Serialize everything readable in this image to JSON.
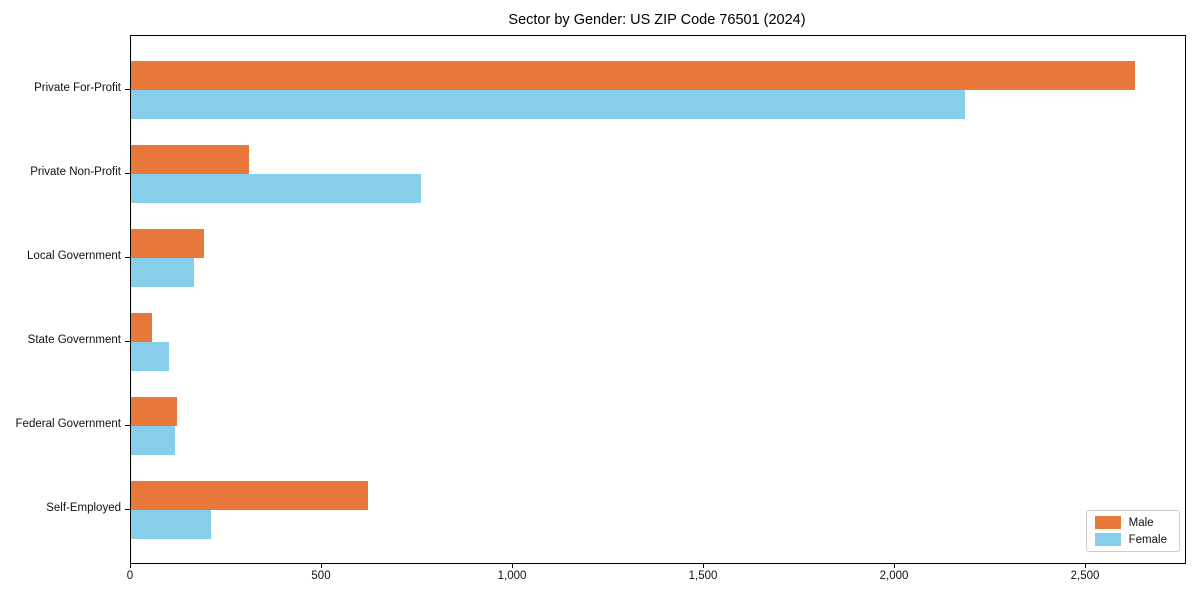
{
  "chart_data": {
    "type": "bar",
    "orientation": "horizontal",
    "title": "Sector by Gender: US ZIP Code 76501 (2024)",
    "categories": [
      "Private For-Profit",
      "Private Non-Profit",
      "Local Government",
      "State Government",
      "Federal Government",
      "Self-Employed"
    ],
    "series": [
      {
        "name": "Male",
        "color": "#E8793B",
        "values": [
          2630,
          310,
          190,
          55,
          120,
          620
        ]
      },
      {
        "name": "Female",
        "color": "#87CEEB",
        "values": [
          2185,
          760,
          165,
          100,
          115,
          210
        ]
      }
    ],
    "xlim": [
      0,
      2760
    ],
    "x_ticks": [
      0,
      500,
      1000,
      1500,
      2000,
      2500
    ],
    "x_tick_labels": [
      "0",
      "500",
      "1,000",
      "1,500",
      "2,000",
      "2,500"
    ],
    "xlabel": "",
    "ylabel": "",
    "grid": false,
    "legend_position": "lower right"
  }
}
